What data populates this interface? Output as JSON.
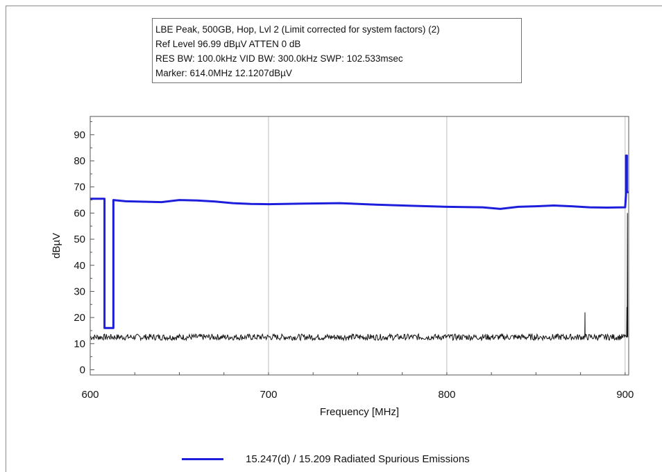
{
  "info": {
    "line1": "LBE Peak, 500GB, Hop, Lvl 2 (Limit corrected for system factors) (2)",
    "line2": "Ref Level 96.99 dBµV    ATTEN 0 dB",
    "line3": "RES BW: 100.0kHz  VID BW: 300.0kHz  SWP: 102.533msec",
    "line4": "Marker: 614.0MHz  12.1207dBµV"
  },
  "chart_data": {
    "type": "line",
    "xlabel": "Frequency [MHz]",
    "ylabel": "dBµV",
    "xlim": [
      600,
      902
    ],
    "ylim": [
      -2,
      97
    ],
    "xticks": [
      600,
      700,
      800,
      900
    ],
    "yticks": [
      0,
      10,
      20,
      30,
      40,
      50,
      60,
      70,
      80,
      90
    ],
    "grid": true,
    "legend_position": "bottom",
    "series": [
      {
        "name": "15.247(d) / 15.209 Radiated Spurious Emissions",
        "role": "limit",
        "color": "#1d1ddc",
        "x": [
          600,
          608,
          608,
          613,
          613,
          620,
          640,
          650,
          660,
          670,
          680,
          690,
          700,
          720,
          740,
          760,
          780,
          790,
          800,
          820,
          830,
          840,
          850,
          860,
          870,
          880,
          890,
          900,
          900.5,
          900.5,
          901,
          901,
          902
        ],
        "y": [
          65.5,
          65.5,
          16,
          16,
          65,
          64.5,
          64.2,
          65,
          64.8,
          64.4,
          63.8,
          63.5,
          63.4,
          63.6,
          63.8,
          63.2,
          62.8,
          62.6,
          62.4,
          62.2,
          61.6,
          62.4,
          62.6,
          62.9,
          62.6,
          62.2,
          62.1,
          62.2,
          67,
          82,
          82,
          68,
          68
        ]
      },
      {
        "name": "",
        "role": "measurement",
        "color": "#111111",
        "noise_floor": 12.5,
        "noise_amplitude": 1.2,
        "spikes": [
          {
            "x": 877.5,
            "y": 22
          },
          {
            "x": 901,
            "y": 24
          },
          {
            "x": 901.3,
            "y": 60
          }
        ]
      }
    ]
  },
  "legend": {
    "label": "15.247(d) / 15.209 Radiated Spurious Emissions"
  }
}
